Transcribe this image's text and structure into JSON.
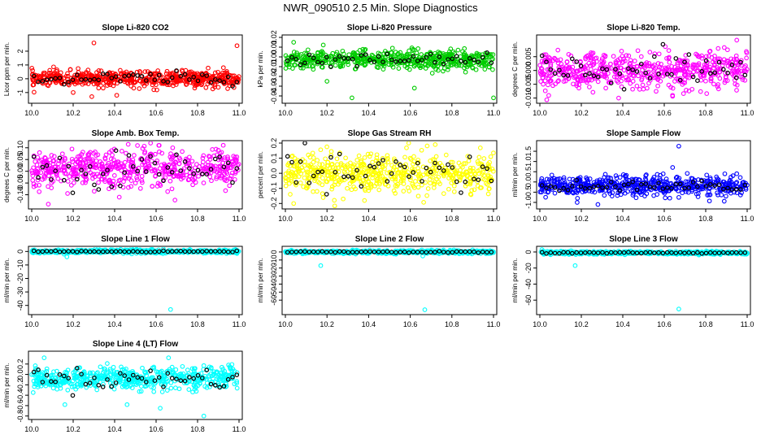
{
  "title": "NWR_090510  2.5 Min. Slope Diagnostics",
  "chart_data": [
    {
      "type": "scatter",
      "title": "Slope Li-820 CO2",
      "ylabel": "Licor ppm per min.",
      "color": "#ff0000",
      "xlim": [
        10.0,
        11.0
      ],
      "ylim": [
        -1.6,
        3.0
      ],
      "yticks": [
        -1,
        0,
        1,
        2
      ],
      "ytick_labels": [
        "-1",
        "0",
        "1",
        "2"
      ],
      "xticks": [
        10.0,
        10.2,
        10.4,
        10.6,
        10.8,
        11.0
      ],
      "xtick_labels": [
        "10.0",
        "10.2",
        "10.4",
        "10.6",
        "10.8",
        "11.0"
      ],
      "center": 0.0,
      "spread": 0.35,
      "black_spread": 0.3,
      "outliers": [
        [
          10.3,
          2.6
        ],
        [
          10.29,
          -1.3
        ],
        [
          10.41,
          -1.2
        ],
        [
          10.99,
          2.4
        ],
        [
          10.2,
          -1.0
        ]
      ]
    },
    {
      "type": "scatter",
      "title": "Slope Li-820 Pressure",
      "ylabel": "kPa per min.",
      "color": "#00cc00",
      "xlim": [
        10.0,
        11.0
      ],
      "ylim": [
        -0.045,
        0.02
      ],
      "yticks": [
        -0.04,
        -0.03,
        -0.02,
        -0.01,
        0.0,
        0.01,
        0.02
      ],
      "ytick_labels": [
        "-0.04",
        "-0.03",
        "-0.02",
        "-0.01",
        "0.00",
        "0.01",
        "0.02"
      ],
      "xticks": [
        10.0,
        10.2,
        10.4,
        10.6,
        10.8,
        11.0
      ],
      "xtick_labels": [
        "10.0",
        "10.2",
        "10.4",
        "10.6",
        "10.8",
        "11.0"
      ],
      "center": -0.003,
      "spread": 0.006,
      "black_spread": 0.004,
      "outliers": [
        [
          10.04,
          0.015
        ],
        [
          10.32,
          -0.042
        ],
        [
          10.62,
          -0.032
        ],
        [
          11.0,
          -0.042
        ],
        [
          10.2,
          -0.025
        ]
      ]
    },
    {
      "type": "scatter",
      "title": "Slope Li-820 Temp.",
      "ylabel": "degrees C per min.",
      "color": "#ff00ff",
      "xlim": [
        10.0,
        11.0
      ],
      "ylim": [
        -0.011,
        0.012
      ],
      "yticks": [
        -0.01,
        -0.005,
        0.0,
        0.005
      ],
      "ytick_labels": [
        "-0.010",
        "-0.005",
        "0.000",
        "0.005"
      ],
      "xticks": [
        10.0,
        10.2,
        10.4,
        10.6,
        10.8,
        11.0
      ],
      "xtick_labels": [
        "10.0",
        "10.2",
        "10.4",
        "10.6",
        "10.8",
        "11.0"
      ],
      "center": 0.0,
      "spread": 0.004,
      "black_spread": 0.004,
      "outliers": [
        [
          10.95,
          0.011
        ],
        [
          10.38,
          -0.01
        ],
        [
          10.64,
          -0.009
        ],
        [
          10.86,
          0.008
        ]
      ]
    },
    {
      "type": "scatter",
      "title": "Slope Amb. Box Temp.",
      "ylabel": "degrees C per min.",
      "color": "#ff00ff",
      "xlim": [
        10.0,
        11.0
      ],
      "ylim": [
        -0.15,
        0.12
      ],
      "yticks": [
        -0.1,
        -0.05,
        0.0,
        0.05,
        0.1
      ],
      "ytick_labels": [
        "-0.10",
        "-0.05",
        "0.00",
        "0.05",
        "0.10"
      ],
      "xticks": [
        10.0,
        10.2,
        10.4,
        10.6,
        10.8,
        11.0
      ],
      "xtick_labels": [
        "10.0",
        "10.2",
        "10.4",
        "10.6",
        "10.8",
        "11.0"
      ],
      "center": 0.01,
      "spread": 0.05,
      "black_spread": 0.05,
      "outliers": [
        [
          10.08,
          -0.14
        ],
        [
          10.68,
          0.1
        ],
        [
          10.9,
          0.09
        ]
      ]
    },
    {
      "type": "scatter",
      "title": "Slope Gas Stream RH",
      "ylabel": "percent per min.",
      "color": "#ffff00",
      "xlim": [
        10.0,
        11.0
      ],
      "ylim": [
        -0.22,
        0.2
      ],
      "yticks": [
        -0.2,
        -0.1,
        0.0,
        0.1,
        0.2
      ],
      "ytick_labels": [
        "-0.2",
        "-0.1",
        "0.0",
        "0.1",
        "0.2"
      ],
      "xticks": [
        10.0,
        10.2,
        10.4,
        10.6,
        10.8,
        11.0
      ],
      "xtick_labels": [
        "10.0",
        "10.2",
        "10.4",
        "10.6",
        "10.8",
        "11.0"
      ],
      "center": 0.0,
      "spread": 0.08,
      "black_spread": 0.08,
      "outliers": [
        [
          10.72,
          0.19
        ],
        [
          10.04,
          -0.2
        ],
        [
          10.38,
          -0.18
        ]
      ]
    },
    {
      "type": "scatter",
      "title": "Slope Sample Flow",
      "ylabel": "ml/min per min.",
      "color": "#0000ff",
      "xlim": [
        10.0,
        11.0
      ],
      "ylim": [
        -1.2,
        1.9
      ],
      "yticks": [
        -1.0,
        -0.5,
        0.0,
        0.5,
        1.0,
        1.5
      ],
      "ytick_labels": [
        "-1.0",
        "-0.5",
        "0.0",
        "0.5",
        "1.0",
        "1.5"
      ],
      "xticks": [
        10.0,
        10.2,
        10.4,
        10.6,
        10.8,
        11.0
      ],
      "xtick_labels": [
        "10.0",
        "10.2",
        "10.4",
        "10.6",
        "10.8",
        "11.0"
      ],
      "center": -0.2,
      "spread": 0.3,
      "black_spread": 0.15,
      "outliers": [
        [
          10.67,
          1.75
        ],
        [
          10.28,
          -1.1
        ],
        [
          10.18,
          -1.0
        ],
        [
          10.95,
          0.4
        ]
      ]
    },
    {
      "type": "scatter",
      "title": "Slope Line 1 Flow",
      "ylabel": "ml/min per min.",
      "color": "#00ffff",
      "xlim": [
        10.0,
        11.0
      ],
      "ylim": [
        -45,
        2
      ],
      "yticks": [
        -40,
        -30,
        -20,
        -10,
        0
      ],
      "ytick_labels": [
        "-40",
        "-30",
        "-20",
        "-10",
        "0"
      ],
      "xticks": [
        10.0,
        10.2,
        10.4,
        10.6,
        10.8,
        11.0
      ],
      "xtick_labels": [
        "10.0",
        "10.2",
        "10.4",
        "10.6",
        "10.8",
        "11.0"
      ],
      "center": 0.0,
      "spread": 0.8,
      "black_spread": 0.3,
      "outliers": [
        [
          10.67,
          -43
        ],
        [
          10.17,
          -4
        ]
      ]
    },
    {
      "type": "scatter",
      "title": "Slope Line 2 Flow",
      "ylabel": "ml/min per min.",
      "color": "#00ffff",
      "xlim": [
        10.0,
        11.0
      ],
      "ylim": [
        -75,
        4
      ],
      "yticks": [
        -60,
        -50,
        -40,
        -30,
        -20,
        -10,
        0
      ],
      "ytick_labels": [
        "-60",
        "-50",
        "-40",
        "-30",
        "-20",
        "-10",
        "0"
      ],
      "xticks": [
        10.0,
        10.2,
        10.4,
        10.6,
        10.8,
        11.0
      ],
      "xtick_labels": [
        "10.0",
        "10.2",
        "10.4",
        "10.6",
        "10.8",
        "11.0"
      ],
      "center": 0.0,
      "spread": 1.2,
      "black_spread": 0.5,
      "outliers": [
        [
          10.67,
          -72
        ],
        [
          10.17,
          -17
        ],
        [
          10.66,
          -5
        ]
      ]
    },
    {
      "type": "scatter",
      "title": "Slope Line 3 Flow",
      "ylabel": "ml/min per min.",
      "color": "#00ffff",
      "xlim": [
        10.0,
        11.0
      ],
      "ylim": [
        -75,
        4
      ],
      "yticks": [
        -60,
        -40,
        -20,
        0
      ],
      "ytick_labels": [
        "-60",
        "-40",
        "-20",
        "0"
      ],
      "xticks": [
        10.0,
        10.2,
        10.4,
        10.6,
        10.8,
        11.0
      ],
      "xtick_labels": [
        "10.0",
        "10.2",
        "10.4",
        "10.6",
        "10.8",
        "11.0"
      ],
      "center": -1.0,
      "spread": 1.2,
      "black_spread": 0.5,
      "outliers": [
        [
          10.67,
          -71
        ],
        [
          10.17,
          -17
        ],
        [
          10.01,
          3
        ]
      ]
    },
    {
      "type": "scatter",
      "title": "Slope Line 4 (LT) Flow",
      "ylabel": "ml/min per min.",
      "color": "#00ffff",
      "xlim": [
        10.0,
        11.0
      ],
      "ylim": [
        -0.82,
        0.4
      ],
      "yticks": [
        -0.8,
        -0.6,
        -0.4,
        -0.2,
        0.0,
        0.2
      ],
      "ytick_labels": [
        "-0.8",
        "-0.6",
        "-0.4",
        "-0.2",
        "0.0",
        "0.2"
      ],
      "xticks": [
        10.0,
        10.2,
        10.4,
        10.6,
        10.8,
        11.0
      ],
      "xtick_labels": [
        "10.0",
        "10.2",
        "10.4",
        "10.6",
        "10.8",
        "11.0"
      ],
      "center": -0.08,
      "spread": 0.13,
      "black_spread": 0.12,
      "outliers": [
        [
          10.83,
          -0.8
        ],
        [
          10.62,
          -0.65
        ],
        [
          10.46,
          -0.58
        ],
        [
          10.16,
          -0.58
        ],
        [
          10.06,
          0.32
        ],
        [
          10.66,
          0.32
        ]
      ]
    }
  ]
}
